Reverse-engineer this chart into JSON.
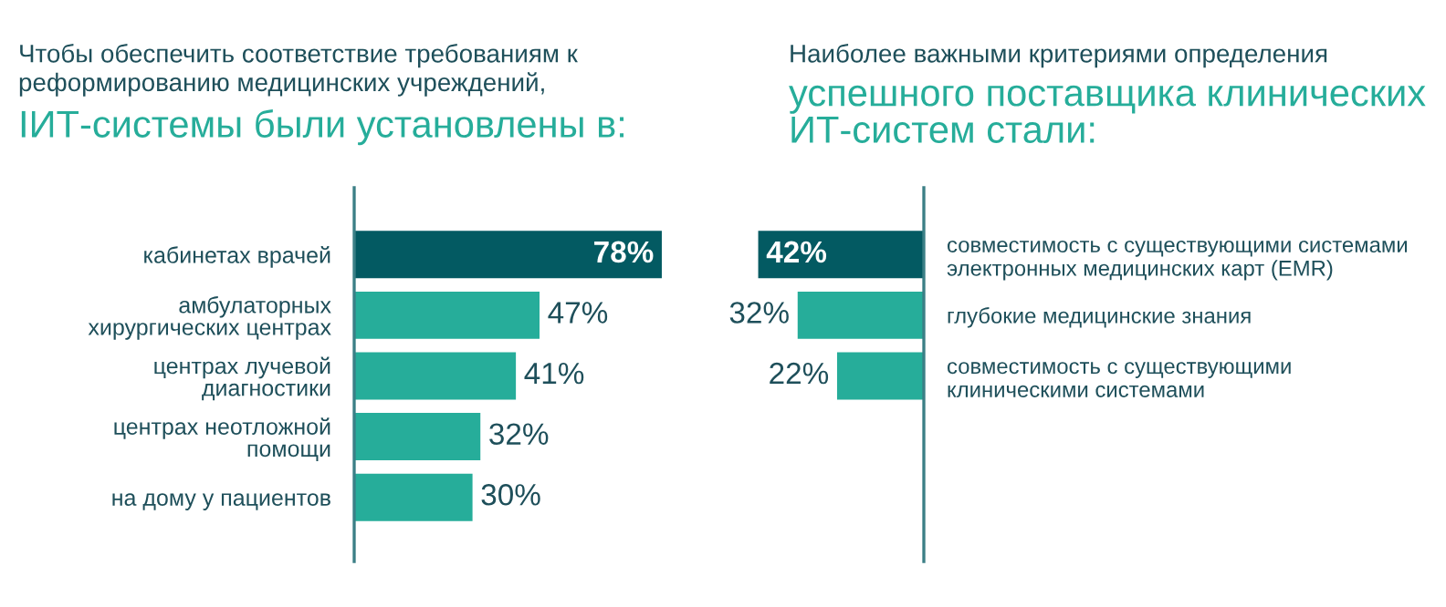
{
  "chart_data": [
    {
      "type": "bar",
      "orientation": "horizontal",
      "title": "Чтобы обеспечить соответствие требованиям к\nреформированию медицинских учреждений,",
      "subtitle": "IИТ-системы были установлены в:",
      "categories": [
        "кабинетах врачей",
        "амбулаторных\nхирургических центрах",
        "центрах лучевой\nдиагностики",
        "центрах неотложной\nпомощи",
        "на дому у пациентов"
      ],
      "values": [
        78,
        47,
        41,
        32,
        30
      ],
      "colors": [
        "#035a62",
        "#26ad9a",
        "#26ad9a",
        "#26ad9a",
        "#26ad9a"
      ],
      "value_labels": [
        "78%",
        "47%",
        "41%",
        "32%",
        "30%"
      ],
      "grid": false
    },
    {
      "type": "bar",
      "orientation": "horizontal",
      "title": "Наиболее важными критериями определения",
      "subtitle": "успешного поставщика клинических\nИТ-систем стали:",
      "categories": [
        "совместимость с существующими системами\nэлектронных медицинских карт (EMR)",
        "глубокие медицинские знания",
        "совместимость с существующими\nклиническими системами"
      ],
      "values": [
        42,
        32,
        22
      ],
      "colors": [
        "#035a62",
        "#26ad9a",
        "#26ad9a"
      ],
      "value_labels": [
        "42%",
        "32%",
        "22%"
      ],
      "grid": false
    }
  ]
}
